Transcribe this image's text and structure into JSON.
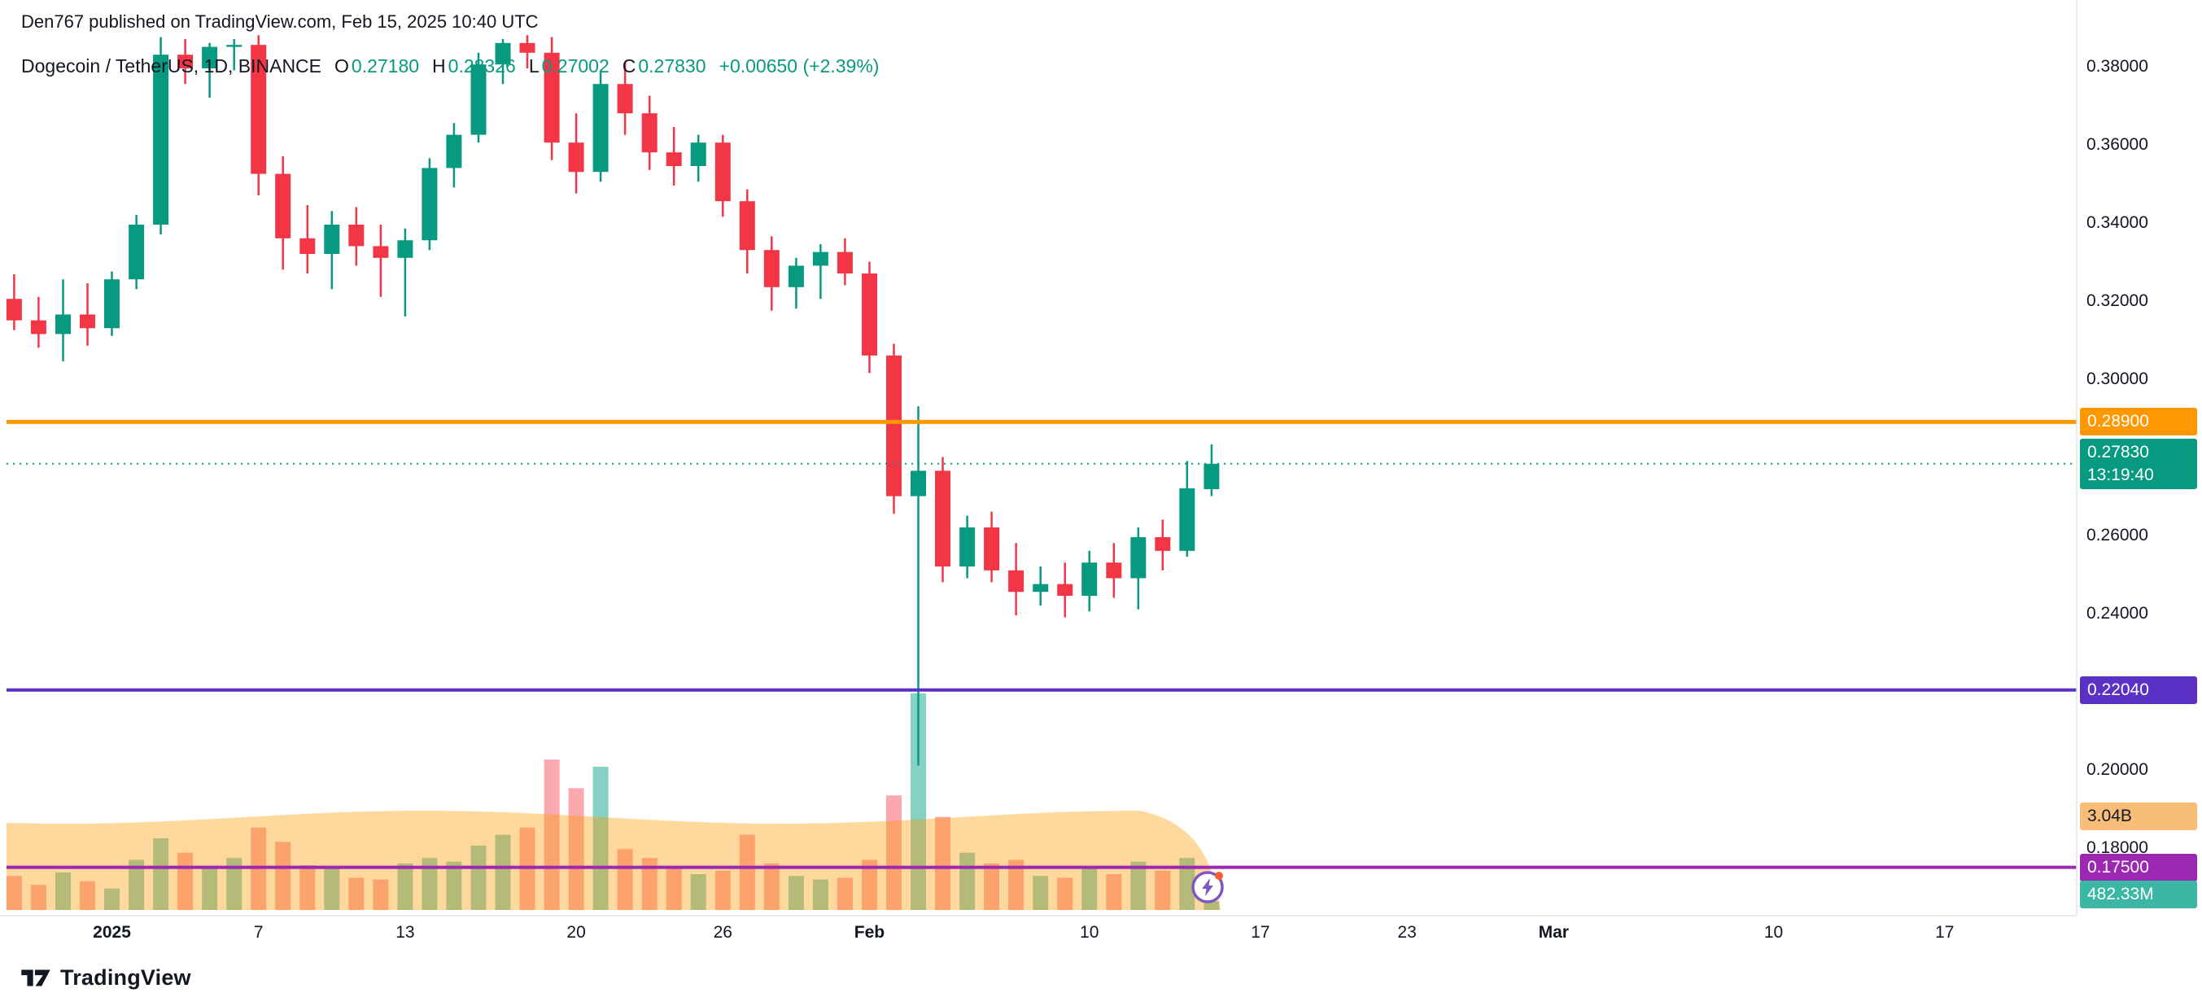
{
  "attribution": "Den767 published on TradingView.com, Feb 15, 2025 10:40 UTC",
  "legend": {
    "symbol": "Dogecoin / TetherUS, 1D, BINANCE",
    "items": [
      {
        "label": "O",
        "value": "0.27180"
      },
      {
        "label": "H",
        "value": "0.28326"
      },
      {
        "label": "L",
        "value": "0.27002"
      },
      {
        "label": "C",
        "value": "0.27830"
      }
    ],
    "change": "+0.00650 (+2.39%)"
  },
  "footer": {
    "brand": "TradingView"
  },
  "colors": {
    "up": "#089981",
    "down": "#F23645",
    "vol_up": "rgba(34,171,148,0.55)",
    "vol_down": "rgba(247,82,95,0.5)",
    "band": "rgba(255,152,0,0.38)",
    "orange": "#FF9800",
    "purple": "#5A31C4",
    "magenta": "#9C27B0",
    "flash": "#7E57C2",
    "flash_dot": "#FF5B2E",
    "text": "#131722",
    "axis_line": "#E0E3EB"
  },
  "price_axis": {
    "ticks": [
      "0.38000",
      "0.36000",
      "0.34000",
      "0.32000",
      "0.30000",
      "0.28000",
      "0.26000",
      "0.24000",
      "0.22000",
      "0.20000",
      "0.18000"
    ]
  },
  "time_axis": {
    "ticks": [
      {
        "label": "2025",
        "i": 4,
        "major": true
      },
      {
        "label": "7",
        "i": 10,
        "major": false
      },
      {
        "label": "13",
        "i": 16,
        "major": false
      },
      {
        "label": "20",
        "i": 23,
        "major": false
      },
      {
        "label": "26",
        "i": 29,
        "major": false
      },
      {
        "label": "Feb",
        "i": 35,
        "major": true
      },
      {
        "label": "10",
        "i": 44,
        "major": false
      },
      {
        "label": "17",
        "i": 51,
        "major": false
      },
      {
        "label": "23",
        "i": 57,
        "major": false
      },
      {
        "label": "Mar",
        "i": 63,
        "major": true
      },
      {
        "label": "10",
        "i": 72,
        "major": false
      },
      {
        "label": "17",
        "i": 79,
        "major": false
      }
    ]
  },
  "badges": {
    "resistance": {
      "text": "0.28900",
      "price": 0.289
    },
    "support": {
      "text": "0.22040",
      "price": 0.2204
    },
    "support2": {
      "text": "0.17500",
      "price": 0.175
    },
    "current": {
      "price_text": "0.27830",
      "countdown": "13:19:40"
    },
    "volume_ma": {
      "text": "3.04B"
    },
    "volume_current": {
      "text": "482.33M"
    }
  },
  "chart_data": {
    "type": "candlestick",
    "title": "Dogecoin / TetherUS, 1D, BINANCE",
    "symbol": "DOGEUSDT",
    "exchange": "BINANCE",
    "interval": "1D",
    "ylim": [
      0.163,
      0.397
    ],
    "xrange": [
      "2024-12-28",
      "2025-03-24"
    ],
    "grid": false,
    "current_price": 0.2783,
    "volume_unit": "B",
    "price_levels": [
      {
        "price": 0.289,
        "label": "0.28900",
        "color_key": "orange",
        "width": 5
      },
      {
        "price": 0.2204,
        "label": "0.22040",
        "color_key": "purple",
        "width": 4
      },
      {
        "price": 0.175,
        "label": "0.17500",
        "color_key": "magenta",
        "width": 4
      }
    ],
    "ohlcv": [
      [
        "2024-12-28",
        0.3205,
        0.3268,
        0.3125,
        0.315,
        1.9
      ],
      [
        "2024-12-29",
        0.315,
        0.321,
        0.308,
        0.3115,
        1.4
      ],
      [
        "2024-12-30",
        0.3115,
        0.3255,
        0.3045,
        0.3165,
        2.1
      ],
      [
        "2024-12-31",
        0.3165,
        0.3245,
        0.3085,
        0.313,
        1.6
      ],
      [
        "2025-01-01",
        0.313,
        0.3275,
        0.311,
        0.3255,
        1.2
      ],
      [
        "2025-01-02",
        0.3255,
        0.342,
        0.323,
        0.3395,
        2.8
      ],
      [
        "2025-01-03",
        0.3395,
        0.3875,
        0.337,
        0.383,
        4.0
      ],
      [
        "2025-01-04",
        0.383,
        0.387,
        0.3755,
        0.3795,
        3.2
      ],
      [
        "2025-01-05",
        0.3795,
        0.386,
        0.372,
        0.385,
        2.4
      ],
      [
        "2025-01-06",
        0.385,
        0.387,
        0.379,
        0.3855,
        2.9
      ],
      [
        "2025-01-07",
        0.3855,
        0.388,
        0.347,
        0.3525,
        4.6
      ],
      [
        "2025-01-08",
        0.3525,
        0.357,
        0.328,
        0.336,
        3.8
      ],
      [
        "2025-01-09",
        0.336,
        0.3445,
        0.327,
        0.332,
        2.5
      ],
      [
        "2025-01-10",
        0.332,
        0.343,
        0.323,
        0.3395,
        2.3
      ],
      [
        "2025-01-11",
        0.3395,
        0.344,
        0.329,
        0.334,
        1.8
      ],
      [
        "2025-01-12",
        0.334,
        0.3395,
        0.321,
        0.331,
        1.7
      ],
      [
        "2025-01-13",
        0.331,
        0.3385,
        0.316,
        0.3355,
        2.6
      ],
      [
        "2025-01-14",
        0.3355,
        0.3565,
        0.333,
        0.354,
        2.9
      ],
      [
        "2025-01-15",
        0.354,
        0.3655,
        0.349,
        0.3625,
        2.7
      ],
      [
        "2025-01-16",
        0.3625,
        0.3835,
        0.3605,
        0.3805,
        3.6
      ],
      [
        "2025-01-17",
        0.3805,
        0.387,
        0.3755,
        0.386,
        4.2
      ],
      [
        "2025-01-18",
        0.386,
        0.388,
        0.3795,
        0.3835,
        4.6
      ],
      [
        "2025-01-19",
        0.3835,
        0.3875,
        0.356,
        0.3605,
        8.4
      ],
      [
        "2025-01-20",
        0.3605,
        0.368,
        0.3475,
        0.353,
        6.8
      ],
      [
        "2025-01-21",
        0.353,
        0.379,
        0.3505,
        0.3755,
        8.0
      ],
      [
        "2025-01-22",
        0.3755,
        0.381,
        0.3625,
        0.368,
        3.4
      ],
      [
        "2025-01-23",
        0.368,
        0.3725,
        0.3535,
        0.358,
        2.9
      ],
      [
        "2025-01-24",
        0.358,
        0.3645,
        0.3495,
        0.3545,
        2.4
      ],
      [
        "2025-01-25",
        0.3545,
        0.3625,
        0.3505,
        0.3605,
        2.0
      ],
      [
        "2025-01-26",
        0.3605,
        0.3625,
        0.3415,
        0.3455,
        2.2
      ],
      [
        "2025-01-27",
        0.3455,
        0.3485,
        0.327,
        0.333,
        4.2
      ],
      [
        "2025-01-28",
        0.333,
        0.3365,
        0.3175,
        0.3235,
        2.6
      ],
      [
        "2025-01-29",
        0.3235,
        0.331,
        0.318,
        0.329,
        1.9
      ],
      [
        "2025-01-30",
        0.329,
        0.3345,
        0.3205,
        0.3325,
        1.7
      ],
      [
        "2025-01-31",
        0.3325,
        0.336,
        0.324,
        0.327,
        1.8
      ],
      [
        "2025-02-01",
        0.327,
        0.33,
        0.3015,
        0.306,
        2.8
      ],
      [
        "2025-02-02",
        0.306,
        0.309,
        0.2655,
        0.27,
        6.4
      ],
      [
        "2025-02-03",
        0.27,
        0.293,
        0.201,
        0.2765,
        12.1
      ],
      [
        "2025-02-04",
        0.2765,
        0.28,
        0.248,
        0.252,
        5.2
      ],
      [
        "2025-02-05",
        0.252,
        0.265,
        0.249,
        0.262,
        3.2
      ],
      [
        "2025-02-06",
        0.262,
        0.266,
        0.248,
        0.251,
        2.6
      ],
      [
        "2025-02-07",
        0.251,
        0.258,
        0.2395,
        0.2455,
        2.8
      ],
      [
        "2025-02-08",
        0.2455,
        0.252,
        0.242,
        0.2475,
        1.9
      ],
      [
        "2025-02-09",
        0.2475,
        0.253,
        0.239,
        0.2445,
        1.8
      ],
      [
        "2025-02-10",
        0.2445,
        0.256,
        0.2405,
        0.253,
        2.3
      ],
      [
        "2025-02-11",
        0.253,
        0.258,
        0.244,
        0.249,
        2.0
      ],
      [
        "2025-02-12",
        0.249,
        0.262,
        0.241,
        0.2595,
        2.7
      ],
      [
        "2025-02-13",
        0.2595,
        0.264,
        0.251,
        0.256,
        2.2
      ],
      [
        "2025-02-14",
        0.256,
        0.279,
        0.2545,
        0.272,
        2.9
      ],
      [
        "2025-02-15",
        0.2718,
        0.28326,
        0.27002,
        0.2783,
        0.48233
      ]
    ]
  }
}
